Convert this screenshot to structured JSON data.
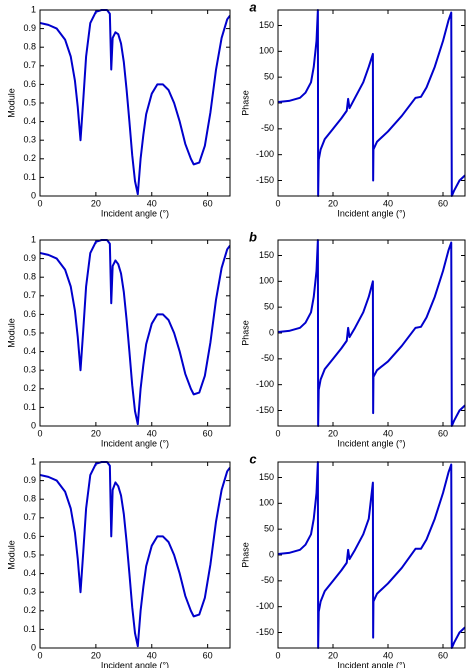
{
  "chart_data": [
    {
      "type": "line",
      "x_label": "Incident angle (°)",
      "y_label": "Module",
      "x": [
        0,
        3,
        6,
        9,
        11,
        12.5,
        13.5,
        14.5,
        15.5,
        16.5,
        18,
        20,
        22,
        24,
        25,
        25.5,
        26,
        27,
        28,
        29,
        30,
        31,
        32,
        33,
        34,
        35,
        36,
        37,
        38,
        40,
        42,
        44,
        46,
        48,
        50,
        52,
        54,
        55,
        57,
        59,
        61,
        63,
        65,
        67,
        68
      ],
      "series": [
        {
          "color": "#0000cc",
          "values": [
            0.93,
            0.92,
            0.9,
            0.84,
            0.75,
            0.62,
            0.48,
            0.3,
            0.52,
            0.75,
            0.93,
            0.99,
            1,
            1,
            0.98,
            0.68,
            0.85,
            0.88,
            0.87,
            0.82,
            0.72,
            0.57,
            0.4,
            0.22,
            0.08,
            0.01,
            0.2,
            0.33,
            0.44,
            0.55,
            0.6,
            0.6,
            0.57,
            0.5,
            0.4,
            0.28,
            0.2,
            0.17,
            0.18,
            0.27,
            0.45,
            0.68,
            0.85,
            0.95,
            0.97
          ]
        }
      ],
      "xlim": [
        0,
        68
      ],
      "xticks": [
        0,
        20,
        40,
        60
      ],
      "ylim": [
        0,
        1
      ],
      "yticks": [
        0,
        0.1,
        0.2,
        0.3,
        0.4,
        0.5,
        0.6,
        0.7,
        0.8,
        0.9,
        1
      ]
    },
    {
      "type": "line",
      "panel_label": "a",
      "x_label": "Incident angle (°)",
      "y_label": "Phase",
      "x": [
        0,
        4,
        8,
        10,
        12,
        13,
        14,
        14.5,
        14.6,
        14.8,
        15.5,
        17,
        20,
        23,
        25,
        25.5,
        26,
        28,
        31,
        33,
        34.5,
        34.6,
        34.7,
        36,
        40,
        45,
        50,
        52,
        54,
        57,
        60,
        62,
        63,
        63.2,
        64,
        66,
        68
      ],
      "series": [
        {
          "color": "#0000cc",
          "values": [
            2,
            4,
            10,
            20,
            40,
            70,
            120,
            180,
            -180,
            -110,
            -90,
            -70,
            -50,
            -30,
            -15,
            8,
            -10,
            10,
            40,
            70,
            95,
            -150,
            -90,
            -75,
            -55,
            -25,
            10,
            12,
            30,
            70,
            120,
            160,
            175,
            -180,
            -170,
            -150,
            -140
          ]
        }
      ],
      "xlim": [
        0,
        68
      ],
      "xticks": [
        0,
        20,
        40,
        60
      ],
      "ylim": [
        -180,
        180
      ],
      "yticks": [
        -150,
        -100,
        -50,
        0,
        50,
        100,
        150
      ]
    },
    {
      "type": "line",
      "x_label": "Incident angle (°)",
      "y_label": "Module",
      "x": [
        0,
        3,
        6,
        9,
        11,
        12.5,
        13.5,
        14.5,
        15.5,
        16.5,
        18,
        20,
        22,
        24,
        25,
        25.5,
        26,
        27,
        28,
        29,
        30,
        31,
        32,
        33,
        34,
        35,
        36,
        37,
        38,
        40,
        42,
        44,
        46,
        48,
        50,
        52,
        54,
        55,
        57,
        59,
        61,
        63,
        65,
        67,
        68
      ],
      "series": [
        {
          "color": "#0000cc",
          "values": [
            0.93,
            0.92,
            0.9,
            0.84,
            0.75,
            0.62,
            0.48,
            0.3,
            0.52,
            0.75,
            0.93,
            0.99,
            1,
            1,
            0.98,
            0.66,
            0.86,
            0.89,
            0.87,
            0.82,
            0.72,
            0.57,
            0.4,
            0.22,
            0.08,
            0.01,
            0.2,
            0.33,
            0.44,
            0.55,
            0.6,
            0.6,
            0.57,
            0.5,
            0.4,
            0.28,
            0.2,
            0.17,
            0.18,
            0.27,
            0.45,
            0.68,
            0.85,
            0.95,
            0.97
          ]
        }
      ],
      "xlim": [
        0,
        68
      ],
      "xticks": [
        0,
        20,
        40,
        60
      ],
      "ylim": [
        0,
        1
      ],
      "yticks": [
        0,
        0.1,
        0.2,
        0.3,
        0.4,
        0.5,
        0.6,
        0.7,
        0.8,
        0.9,
        1
      ]
    },
    {
      "type": "line",
      "panel_label": "b",
      "x_label": "Incident angle (°)",
      "y_label": "Phase",
      "x": [
        0,
        4,
        8,
        10,
        12,
        13,
        14,
        14.5,
        14.6,
        14.8,
        15.5,
        17,
        20,
        23,
        25,
        25.5,
        26,
        28,
        31,
        33,
        34.5,
        34.6,
        34.7,
        36,
        40,
        45,
        50,
        52,
        54,
        57,
        60,
        62,
        63,
        63.2,
        64,
        66,
        68
      ],
      "series": [
        {
          "color": "#0000cc",
          "values": [
            2,
            4,
            10,
            20,
            40,
            70,
            120,
            180,
            -180,
            -110,
            -90,
            -70,
            -50,
            -30,
            -15,
            10,
            -8,
            10,
            40,
            70,
            100,
            -155,
            -85,
            -72,
            -55,
            -25,
            10,
            12,
            30,
            70,
            120,
            160,
            175,
            -180,
            -170,
            -150,
            -140
          ]
        }
      ],
      "xlim": [
        0,
        68
      ],
      "xticks": [
        0,
        20,
        40,
        60
      ],
      "ylim": [
        -180,
        180
      ],
      "yticks": [
        -150,
        -100,
        -50,
        0,
        50,
        100,
        150
      ]
    },
    {
      "type": "line",
      "x_label": "Incident angle (°)",
      "y_label": "Module",
      "x": [
        0,
        3,
        6,
        9,
        11,
        12.5,
        13.5,
        14.5,
        15.5,
        16.5,
        18,
        20,
        22,
        24,
        25,
        25.5,
        26,
        27,
        28,
        29,
        30,
        31,
        32,
        33,
        34,
        35,
        36,
        37,
        38,
        40,
        42,
        44,
        46,
        48,
        50,
        52,
        54,
        55,
        57,
        59,
        61,
        63,
        65,
        67,
        68
      ],
      "series": [
        {
          "color": "#0000cc",
          "values": [
            0.93,
            0.92,
            0.9,
            0.84,
            0.75,
            0.62,
            0.48,
            0.3,
            0.52,
            0.75,
            0.93,
            0.99,
            1,
            1,
            0.98,
            0.6,
            0.85,
            0.89,
            0.87,
            0.82,
            0.72,
            0.57,
            0.4,
            0.22,
            0.08,
            0.01,
            0.2,
            0.33,
            0.44,
            0.55,
            0.6,
            0.6,
            0.57,
            0.5,
            0.4,
            0.28,
            0.2,
            0.17,
            0.18,
            0.27,
            0.45,
            0.68,
            0.85,
            0.95,
            0.97
          ]
        }
      ],
      "xlim": [
        0,
        68
      ],
      "xticks": [
        0,
        20,
        40,
        60
      ],
      "ylim": [
        0,
        1
      ],
      "yticks": [
        0,
        0.1,
        0.2,
        0.3,
        0.4,
        0.5,
        0.6,
        0.7,
        0.8,
        0.9,
        1
      ]
    },
    {
      "type": "line",
      "panel_label": "c",
      "x_label": "Incident angle (°)",
      "y_label": "Phase",
      "x": [
        0,
        4,
        8,
        10,
        12,
        13,
        14,
        14.5,
        14.6,
        14.8,
        15.5,
        17,
        20,
        23,
        25,
        25.5,
        26,
        28,
        31,
        33,
        34.5,
        34.6,
        34.7,
        36,
        40,
        45,
        50,
        52,
        54,
        57,
        60,
        62,
        63,
        63.2,
        64,
        66,
        68
      ],
      "series": [
        {
          "color": "#0000cc",
          "values": [
            2,
            4,
            10,
            20,
            40,
            70,
            120,
            180,
            -180,
            -110,
            -90,
            -70,
            -50,
            -30,
            -15,
            10,
            -8,
            10,
            40,
            70,
            140,
            -160,
            -90,
            -75,
            -55,
            -25,
            12,
            12,
            30,
            70,
            120,
            160,
            175,
            -180,
            -170,
            -150,
            -140
          ]
        }
      ],
      "xlim": [
        0,
        68
      ],
      "xticks": [
        0,
        20,
        40,
        60
      ],
      "ylim": [
        -180,
        180
      ],
      "yticks": [
        -150,
        -100,
        -50,
        0,
        50,
        100,
        150
      ]
    }
  ]
}
